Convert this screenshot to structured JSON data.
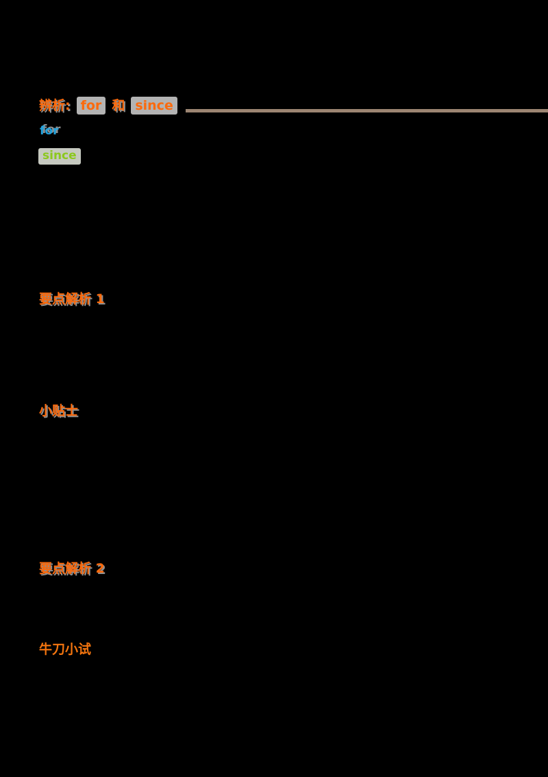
{
  "colors": {
    "background": "#000000",
    "accent_orange": "#fb6a0d",
    "accent_orange_light": "#f4750f",
    "shadow_gray": "#8f8f8f",
    "code_bg": "#b3b3b3",
    "for_blue": "#22a2dd",
    "since_green": "#8cc81e",
    "since_bg": "#c6c9c0",
    "rule_tan": "#9c8572"
  },
  "title": {
    "prefix": "辨析:",
    "term_for": "for",
    "connector": "和",
    "term_since": "since"
  },
  "legend": {
    "for_label": "for",
    "since_label": "since"
  },
  "sections": {
    "analysis1": "要点解析 1",
    "tips": "小贴士",
    "analysis2": "要点解析 2",
    "practice": "牛刀小试"
  }
}
